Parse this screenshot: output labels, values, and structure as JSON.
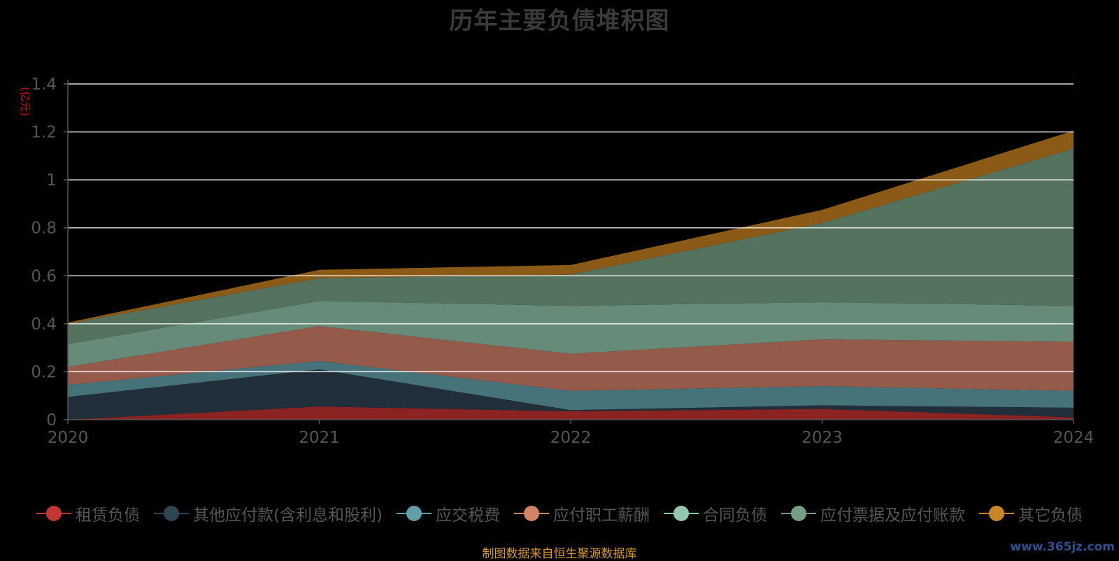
{
  "title": "历年主要负债堆积图",
  "unit_label": "(亿元)",
  "source_note": "制图数据来自恒生聚源数据库",
  "watermark": "www.365jz.com",
  "colors": {
    "background": "#000000",
    "title": "#3a3a3a",
    "axis_text": "#555555",
    "unit": "#cc1111",
    "grid": "#ffffff",
    "source": "#d89a2e"
  },
  "chart_data": {
    "type": "area",
    "stacked": true,
    "title": "历年主要负债堆积图",
    "ylabel": "(亿元)",
    "x": [
      "2020",
      "2021",
      "2022",
      "2023",
      "2024"
    ],
    "ylim": [
      0,
      1.4
    ],
    "yticks": [
      0,
      0.2,
      0.4,
      0.6,
      0.8,
      1,
      1.2,
      1.4
    ],
    "ytick_labels": [
      "0",
      "0.2",
      "0.4",
      "0.6",
      "0.8",
      "1",
      "1.2",
      "1.4"
    ],
    "grid": true,
    "legend_position": "bottom",
    "series": [
      {
        "name": "租赁负债",
        "values": [
          0.0,
          0.055,
          0.035,
          0.045,
          0.01
        ],
        "fill": "#8b2323",
        "legend_color": "#c23531"
      },
      {
        "name": "其他应付款(含利息和股利)",
        "values": [
          0.095,
          0.155,
          0.005,
          0.015,
          0.04
        ],
        "fill": "#212f3a",
        "legend_color": "#2f4554"
      },
      {
        "name": "应交税费",
        "values": [
          0.05,
          0.035,
          0.08,
          0.08,
          0.07
        ],
        "fill": "#46727a",
        "legend_color": "#61a0a8"
      },
      {
        "name": "应付职工薪酬",
        "values": [
          0.075,
          0.145,
          0.155,
          0.195,
          0.205
        ],
        "fill": "#945b4b",
        "legend_color": "#d48265"
      },
      {
        "name": "合同负债",
        "values": [
          0.095,
          0.105,
          0.2,
          0.155,
          0.15
        ],
        "fill": "#668b78",
        "legend_color": "#91c7ae"
      },
      {
        "name": "应付票据及应付账款",
        "values": [
          0.085,
          0.095,
          0.13,
          0.33,
          0.655
        ],
        "fill": "#54725d",
        "legend_color": "#749f83"
      },
      {
        "name": "其它负债",
        "values": [
          0.005,
          0.035,
          0.04,
          0.055,
          0.075
        ],
        "fill": "#8b5a17",
        "legend_color": "#ca8622"
      }
    ]
  }
}
